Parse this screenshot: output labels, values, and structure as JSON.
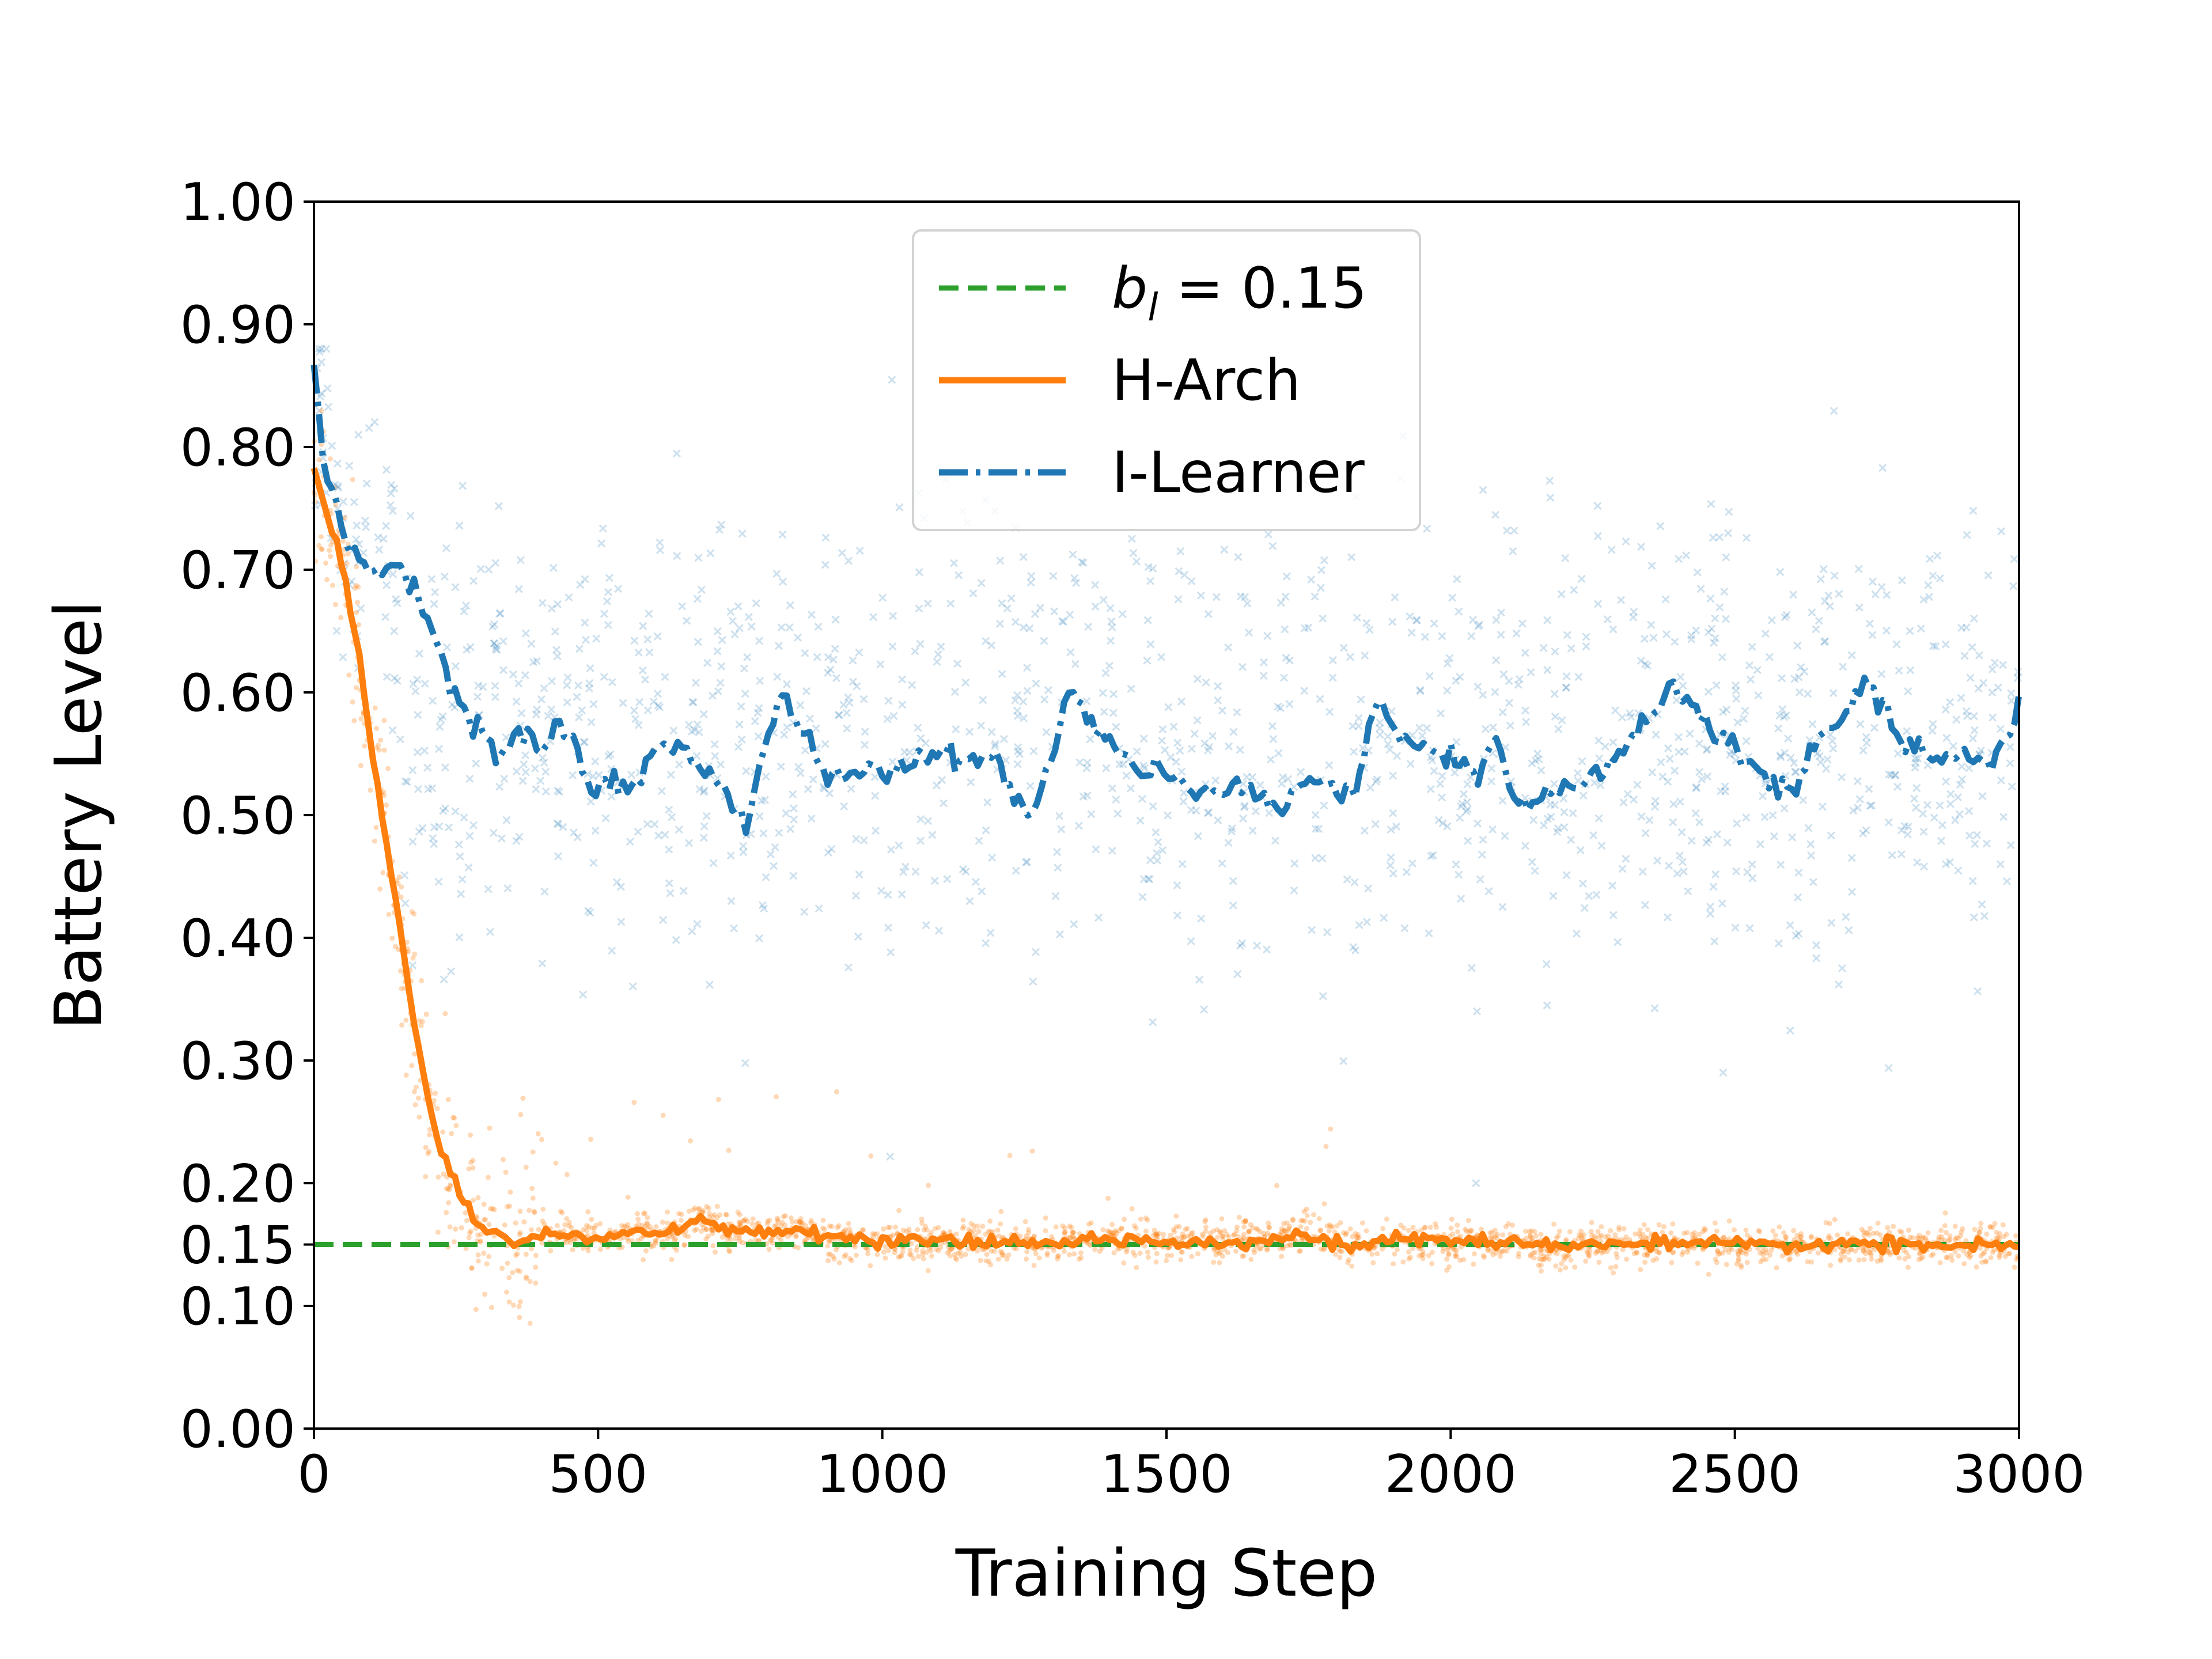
{
  "chart_data": {
    "type": "line",
    "title": "",
    "xlabel": "Training Step",
    "ylabel": "Battery Level",
    "xlim": [
      0,
      3000
    ],
    "ylim": [
      0,
      1
    ],
    "xticks": [
      0,
      500,
      1000,
      1500,
      2000,
      2500,
      3000
    ],
    "xtick_labels": [
      "0",
      "500",
      "1000",
      "1500",
      "2000",
      "2500",
      "3000"
    ],
    "yticks": [
      0,
      0.1,
      0.15,
      0.2,
      0.3,
      0.4,
      0.5,
      0.6,
      0.7,
      0.8,
      0.9,
      1.0
    ],
    "ytick_labels": [
      "0.00",
      "0.10",
      "0.15",
      "0.20",
      "0.30",
      "0.40",
      "0.50",
      "0.60",
      "0.70",
      "0.80",
      "0.90",
      "1.00"
    ],
    "grid": false,
    "legend_position": "top-center",
    "legend": [
      {
        "label_italic": "b",
        "label_sub": "l",
        "label_rest": " = 0.15",
        "color": "#2ca02c",
        "style": "dashed"
      },
      {
        "label": "H-Arch",
        "color": "#ff7f0e",
        "style": "solid"
      },
      {
        "label": "I-Learner",
        "color": "#1f77b4",
        "style": "dashdot"
      }
    ],
    "series": [
      {
        "name": "b_l = 0.15",
        "color": "#2ca02c",
        "style": "dashed",
        "x": [
          0,
          3000
        ],
        "y": [
          0.15,
          0.15
        ]
      },
      {
        "name": "H-Arch",
        "color": "#ff7f0e",
        "style": "solid",
        "x": [
          0,
          20,
          40,
          60,
          80,
          100,
          120,
          140,
          160,
          180,
          200,
          220,
          240,
          260,
          280,
          300,
          330,
          360,
          400,
          450,
          500,
          550,
          600,
          650,
          680,
          720,
          760,
          800,
          850,
          900,
          950,
          1000,
          1100,
          1200,
          1300,
          1400,
          1500,
          1600,
          1700,
          1750,
          1800,
          1850,
          1900,
          2000,
          2100,
          2200,
          2300,
          2400,
          2500,
          2600,
          2700,
          2800,
          2900,
          3000
        ],
        "y": [
          0.78,
          0.75,
          0.72,
          0.68,
          0.63,
          0.56,
          0.5,
          0.44,
          0.38,
          0.32,
          0.27,
          0.23,
          0.21,
          0.19,
          0.17,
          0.162,
          0.158,
          0.152,
          0.16,
          0.158,
          0.155,
          0.16,
          0.158,
          0.162,
          0.172,
          0.163,
          0.16,
          0.158,
          0.162,
          0.156,
          0.155,
          0.152,
          0.153,
          0.15,
          0.152,
          0.154,
          0.153,
          0.152,
          0.155,
          0.158,
          0.152,
          0.147,
          0.155,
          0.153,
          0.152,
          0.148,
          0.152,
          0.15,
          0.15,
          0.149,
          0.151,
          0.15,
          0.149,
          0.148
        ]
      },
      {
        "name": "I-Learner",
        "color": "#1f77b4",
        "style": "dashdot",
        "x": [
          0,
          20,
          40,
          60,
          80,
          100,
          120,
          150,
          180,
          200,
          220,
          250,
          280,
          300,
          320,
          350,
          380,
          400,
          430,
          450,
          480,
          500,
          530,
          560,
          600,
          650,
          680,
          700,
          740,
          760,
          800,
          820,
          850,
          880,
          900,
          950,
          1000,
          1050,
          1100,
          1150,
          1200,
          1240,
          1260,
          1300,
          1330,
          1360,
          1400,
          1450,
          1500,
          1550,
          1600,
          1650,
          1700,
          1750,
          1800,
          1830,
          1870,
          1900,
          1950,
          2000,
          2050,
          2080,
          2100,
          2150,
          2200,
          2250,
          2300,
          2350,
          2380,
          2400,
          2450,
          2500,
          2550,
          2600,
          2650,
          2700,
          2720,
          2750,
          2800,
          2850,
          2900,
          2950,
          2980,
          3000
        ],
        "y": [
          0.86,
          0.78,
          0.75,
          0.72,
          0.7,
          0.7,
          0.7,
          0.7,
          0.68,
          0.66,
          0.63,
          0.6,
          0.57,
          0.56,
          0.55,
          0.56,
          0.57,
          0.55,
          0.58,
          0.57,
          0.53,
          0.52,
          0.53,
          0.52,
          0.55,
          0.56,
          0.54,
          0.53,
          0.51,
          0.49,
          0.57,
          0.6,
          0.57,
          0.55,
          0.53,
          0.535,
          0.54,
          0.54,
          0.55,
          0.54,
          0.55,
          0.51,
          0.5,
          0.55,
          0.6,
          0.58,
          0.56,
          0.54,
          0.53,
          0.52,
          0.52,
          0.52,
          0.51,
          0.53,
          0.52,
          0.51,
          0.6,
          0.57,
          0.55,
          0.55,
          0.53,
          0.57,
          0.52,
          0.51,
          0.52,
          0.53,
          0.55,
          0.58,
          0.6,
          0.6,
          0.57,
          0.56,
          0.53,
          0.52,
          0.56,
          0.58,
          0.61,
          0.59,
          0.56,
          0.55,
          0.55,
          0.54,
          0.57,
          0.59
        ]
      }
    ],
    "scatter_series": [
      {
        "name": "H-Arch samples",
        "color": "#ff7f0e",
        "marker": "dot",
        "count": 3000,
        "note": "noisy samples around H-Arch"
      },
      {
        "name": "I-Learner samples",
        "color": "#1f77b4",
        "marker": "x",
        "count": 3000,
        "note": "noisy samples spread 0.25–0.85"
      }
    ]
  }
}
